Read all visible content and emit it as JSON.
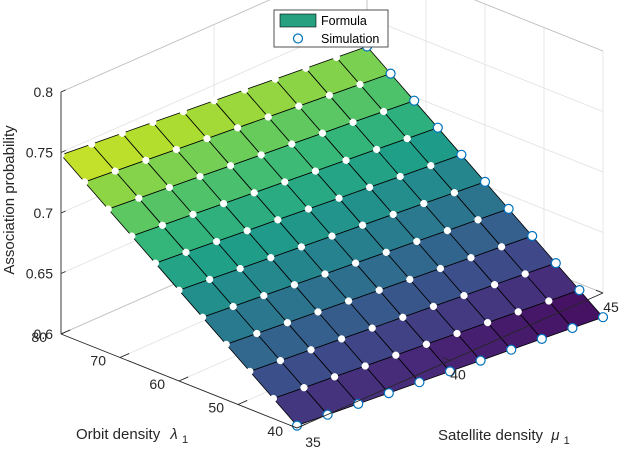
{
  "chart_data": {
    "type": "surface",
    "x": {
      "label_text": "Orbit density",
      "label_symbol": "λ",
      "label_sub": "1",
      "range": [
        40,
        80
      ],
      "ticks": [
        40,
        50,
        60,
        70,
        80
      ],
      "tick_labels": [
        "40",
        "50",
        "60",
        "70",
        "80"
      ]
    },
    "y": {
      "label_text": "Satellite density",
      "label_symbol": "μ",
      "label_sub": "1",
      "range": [
        35,
        45
      ],
      "ticks": [
        35,
        40,
        45
      ],
      "tick_labels": [
        "35",
        "40",
        "45"
      ]
    },
    "z": {
      "label": "Association probability",
      "range": [
        0.6,
        0.8
      ],
      "ticks": [
        0.6,
        0.65,
        0.7,
        0.75,
        0.8
      ],
      "tick_labels": [
        "0.6",
        "0.65",
        "0.7",
        "0.75",
        "0.8"
      ]
    },
    "grid": true,
    "colormap": "viridis",
    "legend": {
      "position": "top-center",
      "entries": [
        "Formula",
        "Simulation"
      ]
    },
    "series": [
      {
        "name": "Formula",
        "style": "surface",
        "x_values": [
          40,
          44,
          48,
          52,
          56,
          60,
          64,
          68,
          72,
          76,
          80
        ],
        "y_values": [
          35,
          36,
          37,
          38,
          39,
          40,
          41,
          42,
          43,
          44,
          45
        ],
        "z_model": "z = 0.602 + 0.146 * (x - 40) / 40 - 0.022 * (y - 35) / 10"
      },
      {
        "name": "Simulation",
        "style": "markers",
        "x_values": [
          40,
          44,
          48,
          52,
          56,
          60,
          64,
          68,
          72,
          76,
          80
        ],
        "y_values": [
          35,
          36,
          37,
          38,
          39,
          40,
          41,
          42,
          43,
          44,
          45
        ],
        "z_model": "same as Formula"
      }
    ]
  },
  "colors": {
    "edge": "#000000",
    "marker_edge": "#0072BD",
    "marker_fill": "#ffffff",
    "axis": "#262626",
    "grid": "#e1e1e1",
    "legend_patch": "#26A07F"
  }
}
